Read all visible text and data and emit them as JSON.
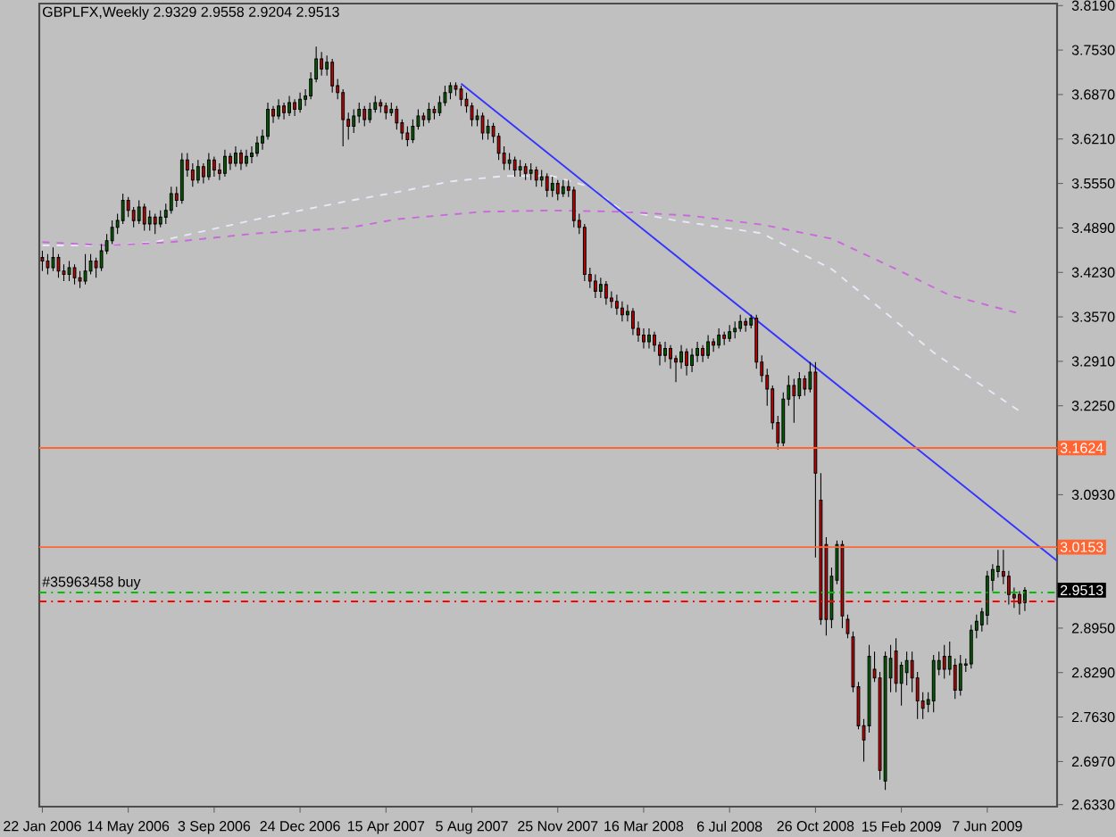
{
  "chart_data": {
    "type": "candlestick",
    "title": "GBPLFX,Weekly  2.9329 2.9558 2.9204 2.9513",
    "x": [
      "2006-01-22",
      "2006-01-29",
      "2006-02-05",
      "2006-02-12",
      "2006-02-19",
      "2006-02-26",
      "2006-03-05",
      "2006-03-12",
      "2006-03-19",
      "2006-03-26",
      "2006-04-02",
      "2006-04-09",
      "2006-04-16",
      "2006-04-23",
      "2006-04-30",
      "2006-05-07",
      "2006-05-14",
      "2006-05-21",
      "2006-05-28",
      "2006-06-04",
      "2006-06-11",
      "2006-06-18",
      "2006-06-25",
      "2006-07-02",
      "2006-07-09",
      "2006-07-16",
      "2006-07-23",
      "2006-07-30",
      "2006-08-06",
      "2006-08-13",
      "2006-08-20",
      "2006-08-27",
      "2006-09-03",
      "2006-09-10",
      "2006-09-17",
      "2006-09-24",
      "2006-10-01",
      "2006-10-08",
      "2006-10-15",
      "2006-10-22",
      "2006-10-29",
      "2006-11-05",
      "2006-11-12",
      "2006-11-19",
      "2006-11-26",
      "2006-12-03",
      "2006-12-10",
      "2006-12-17",
      "2006-12-24",
      "2006-12-31",
      "2007-01-07",
      "2007-01-14",
      "2007-01-21",
      "2007-01-28",
      "2007-02-04",
      "2007-02-11",
      "2007-02-18",
      "2007-02-25",
      "2007-03-04",
      "2007-03-11",
      "2007-03-18",
      "2007-03-25",
      "2007-04-01",
      "2007-04-08",
      "2007-04-15",
      "2007-04-22",
      "2007-04-29",
      "2007-05-06",
      "2007-05-13",
      "2007-05-20",
      "2007-05-27",
      "2007-06-03",
      "2007-06-10",
      "2007-06-17",
      "2007-06-24",
      "2007-07-01",
      "2007-07-08",
      "2007-07-15",
      "2007-07-22",
      "2007-07-29",
      "2007-08-05",
      "2007-08-12",
      "2007-08-19",
      "2007-08-26",
      "2007-09-02",
      "2007-09-09",
      "2007-09-16",
      "2007-09-23",
      "2007-09-30",
      "2007-10-07",
      "2007-10-14",
      "2007-10-21",
      "2007-10-28",
      "2007-11-04",
      "2007-11-11",
      "2007-11-18",
      "2007-11-25",
      "2007-12-02",
      "2007-12-09",
      "2007-12-16",
      "2007-12-23",
      "2007-12-30",
      "2008-01-06",
      "2008-01-13",
      "2008-01-20",
      "2008-01-27",
      "2008-02-03",
      "2008-02-10",
      "2008-02-17",
      "2008-02-24",
      "2008-03-02",
      "2008-03-09",
      "2008-03-16",
      "2008-03-23",
      "2008-03-30",
      "2008-04-06",
      "2008-04-13",
      "2008-04-20",
      "2008-04-27",
      "2008-05-04",
      "2008-05-11",
      "2008-05-18",
      "2008-05-25",
      "2008-06-01",
      "2008-06-08",
      "2008-06-15",
      "2008-06-22",
      "2008-06-29",
      "2008-07-06",
      "2008-07-13",
      "2008-07-20",
      "2008-07-27",
      "2008-08-03",
      "2008-08-10",
      "2008-08-17",
      "2008-08-24",
      "2008-08-31",
      "2008-09-07",
      "2008-09-14",
      "2008-09-21",
      "2008-09-28",
      "2008-10-05",
      "2008-10-12",
      "2008-10-19",
      "2008-10-26",
      "2008-11-02",
      "2008-11-09",
      "2008-11-16",
      "2008-11-23",
      "2008-11-30",
      "2008-12-07",
      "2008-12-14",
      "2008-12-21",
      "2008-12-28",
      "2009-01-04",
      "2009-01-11",
      "2009-01-18",
      "2009-01-25",
      "2009-02-01",
      "2009-02-08",
      "2009-02-15",
      "2009-02-22",
      "2009-03-01",
      "2009-03-08",
      "2009-03-15",
      "2009-03-22",
      "2009-03-29",
      "2009-04-05",
      "2009-04-12",
      "2009-04-19",
      "2009-04-26",
      "2009-05-03",
      "2009-05-10",
      "2009-05-17",
      "2009-05-24",
      "2009-05-31",
      "2009-06-07",
      "2009-06-14",
      "2009-06-21",
      "2009-06-28",
      "2009-07-05",
      "2009-07-12",
      "2009-07-19",
      "2009-07-26"
    ],
    "ohlc": [
      [
        3.445,
        3.455,
        3.425,
        3.44
      ],
      [
        3.44,
        3.45,
        3.42,
        3.43
      ],
      [
        3.43,
        3.46,
        3.425,
        3.445
      ],
      [
        3.445,
        3.45,
        3.415,
        3.425
      ],
      [
        3.425,
        3.435,
        3.41,
        3.42
      ],
      [
        3.42,
        3.44,
        3.41,
        3.43
      ],
      [
        3.43,
        3.435,
        3.405,
        3.415
      ],
      [
        3.415,
        3.425,
        3.4,
        3.41
      ],
      [
        3.41,
        3.45,
        3.405,
        3.425
      ],
      [
        3.425,
        3.45,
        3.42,
        3.44
      ],
      [
        3.44,
        3.445,
        3.415,
        3.43
      ],
      [
        3.43,
        3.465,
        3.425,
        3.455
      ],
      [
        3.455,
        3.48,
        3.45,
        3.47
      ],
      [
        3.47,
        3.5,
        3.465,
        3.49
      ],
      [
        3.49,
        3.51,
        3.48,
        3.5
      ],
      [
        3.5,
        3.54,
        3.495,
        3.53
      ],
      [
        3.53,
        3.535,
        3.505,
        3.515
      ],
      [
        3.515,
        3.52,
        3.49,
        3.5
      ],
      [
        3.5,
        3.53,
        3.495,
        3.52
      ],
      [
        3.52,
        3.525,
        3.485,
        3.495
      ],
      [
        3.495,
        3.515,
        3.485,
        3.505
      ],
      [
        3.505,
        3.51,
        3.48,
        3.495
      ],
      [
        3.495,
        3.515,
        3.49,
        3.505
      ],
      [
        3.505,
        3.525,
        3.495,
        3.515
      ],
      [
        3.515,
        3.55,
        3.51,
        3.54
      ],
      [
        3.54,
        3.55,
        3.52,
        3.53
      ],
      [
        3.53,
        3.6,
        3.525,
        3.59
      ],
      [
        3.59,
        3.6,
        3.565,
        3.575
      ],
      [
        3.575,
        3.585,
        3.55,
        3.56
      ],
      [
        3.56,
        3.59,
        3.555,
        3.58
      ],
      [
        3.58,
        3.585,
        3.555,
        3.565
      ],
      [
        3.565,
        3.6,
        3.56,
        3.59
      ],
      [
        3.59,
        3.595,
        3.565,
        3.575
      ],
      [
        3.575,
        3.585,
        3.56,
        3.57
      ],
      [
        3.57,
        3.605,
        3.565,
        3.595
      ],
      [
        3.595,
        3.6,
        3.575,
        3.585
      ],
      [
        3.585,
        3.61,
        3.58,
        3.6
      ],
      [
        3.6,
        3.605,
        3.575,
        3.585
      ],
      [
        3.585,
        3.605,
        3.58,
        3.595
      ],
      [
        3.595,
        3.61,
        3.585,
        3.6
      ],
      [
        3.6,
        3.625,
        3.595,
        3.615
      ],
      [
        3.615,
        3.635,
        3.605,
        3.625
      ],
      [
        3.625,
        3.675,
        3.62,
        3.665
      ],
      [
        3.665,
        3.67,
        3.645,
        3.655
      ],
      [
        3.655,
        3.68,
        3.65,
        3.67
      ],
      [
        3.67,
        3.675,
        3.65,
        3.66
      ],
      [
        3.66,
        3.685,
        3.655,
        3.675
      ],
      [
        3.675,
        3.68,
        3.655,
        3.665
      ],
      [
        3.665,
        3.69,
        3.66,
        3.68
      ],
      [
        3.68,
        3.695,
        3.67,
        3.685
      ],
      [
        3.685,
        3.72,
        3.68,
        3.71
      ],
      [
        3.71,
        3.758,
        3.705,
        3.74
      ],
      [
        3.74,
        3.75,
        3.715,
        3.725
      ],
      [
        3.725,
        3.745,
        3.715,
        3.735
      ],
      [
        3.735,
        3.74,
        3.69,
        3.7
      ],
      [
        3.7,
        3.71,
        3.68,
        3.69
      ],
      [
        3.69,
        3.695,
        3.61,
        3.65
      ],
      [
        3.65,
        3.66,
        3.62,
        3.64
      ],
      [
        3.64,
        3.665,
        3.63,
        3.655
      ],
      [
        3.655,
        3.675,
        3.645,
        3.665
      ],
      [
        3.665,
        3.67,
        3.64,
        3.65
      ],
      [
        3.65,
        3.675,
        3.645,
        3.665
      ],
      [
        3.665,
        3.685,
        3.66,
        3.675
      ],
      [
        3.675,
        3.68,
        3.66,
        3.67
      ],
      [
        3.67,
        3.675,
        3.65,
        3.66
      ],
      [
        3.66,
        3.675,
        3.655,
        3.665
      ],
      [
        3.665,
        3.67,
        3.635,
        3.645
      ],
      [
        3.645,
        3.65,
        3.62,
        3.63
      ],
      [
        3.63,
        3.64,
        3.61,
        3.62
      ],
      [
        3.62,
        3.65,
        3.615,
        3.64
      ],
      [
        3.64,
        3.665,
        3.635,
        3.655
      ],
      [
        3.655,
        3.66,
        3.64,
        3.65
      ],
      [
        3.65,
        3.675,
        3.645,
        3.665
      ],
      [
        3.665,
        3.67,
        3.65,
        3.66
      ],
      [
        3.66,
        3.685,
        3.655,
        3.675
      ],
      [
        3.675,
        3.7,
        3.67,
        3.69
      ],
      [
        3.69,
        3.705,
        3.68,
        3.7
      ],
      [
        3.7,
        3.705,
        3.685,
        3.695
      ],
      [
        3.695,
        3.7,
        3.67,
        3.68
      ],
      [
        3.68,
        3.69,
        3.66,
        3.67
      ],
      [
        3.67,
        3.675,
        3.64,
        3.65
      ],
      [
        3.65,
        3.665,
        3.64,
        3.655
      ],
      [
        3.655,
        3.66,
        3.62,
        3.63
      ],
      [
        3.63,
        3.65,
        3.62,
        3.64
      ],
      [
        3.64,
        3.645,
        3.615,
        3.625
      ],
      [
        3.625,
        3.63,
        3.59,
        3.6
      ],
      [
        3.6,
        3.61,
        3.575,
        3.585
      ],
      [
        3.585,
        3.6,
        3.575,
        3.59
      ],
      [
        3.59,
        3.595,
        3.565,
        3.575
      ],
      [
        3.575,
        3.59,
        3.565,
        3.58
      ],
      [
        3.58,
        3.585,
        3.56,
        3.57
      ],
      [
        3.57,
        3.585,
        3.56,
        3.575
      ],
      [
        3.575,
        3.58,
        3.55,
        3.56
      ],
      [
        3.56,
        3.575,
        3.55,
        3.565
      ],
      [
        3.565,
        3.57,
        3.535,
        3.545
      ],
      [
        3.545,
        3.565,
        3.535,
        3.555
      ],
      [
        3.555,
        3.56,
        3.53,
        3.54
      ],
      [
        3.54,
        3.56,
        3.535,
        3.55
      ],
      [
        3.55,
        3.56,
        3.535,
        3.545
      ],
      [
        3.545,
        3.55,
        3.49,
        3.5
      ],
      [
        3.5,
        3.51,
        3.48,
        3.49
      ],
      [
        3.49,
        3.495,
        3.41,
        3.42
      ],
      [
        3.42,
        3.43,
        3.4,
        3.41
      ],
      [
        3.41,
        3.42,
        3.385,
        3.395
      ],
      [
        3.395,
        3.415,
        3.385,
        3.405
      ],
      [
        3.405,
        3.41,
        3.375,
        3.385
      ],
      [
        3.385,
        3.395,
        3.37,
        3.38
      ],
      [
        3.38,
        3.39,
        3.36,
        3.37
      ],
      [
        3.37,
        3.38,
        3.35,
        3.36
      ],
      [
        3.36,
        3.375,
        3.35,
        3.365
      ],
      [
        3.365,
        3.37,
        3.33,
        3.34
      ],
      [
        3.34,
        3.35,
        3.32,
        3.33
      ],
      [
        3.33,
        3.34,
        3.31,
        3.32
      ],
      [
        3.32,
        3.34,
        3.31,
        3.33
      ],
      [
        3.33,
        3.335,
        3.305,
        3.315
      ],
      [
        3.315,
        3.32,
        3.285,
        3.3
      ],
      [
        3.3,
        3.32,
        3.29,
        3.31
      ],
      [
        3.31,
        3.315,
        3.28,
        3.295
      ],
      [
        3.295,
        3.3,
        3.26,
        3.29
      ],
      [
        3.29,
        3.315,
        3.28,
        3.305
      ],
      [
        3.305,
        3.31,
        3.27,
        3.285
      ],
      [
        3.285,
        3.31,
        3.275,
        3.3
      ],
      [
        3.3,
        3.32,
        3.29,
        3.31
      ],
      [
        3.31,
        3.315,
        3.29,
        3.3
      ],
      [
        3.3,
        3.33,
        3.295,
        3.32
      ],
      [
        3.32,
        3.325,
        3.305,
        3.315
      ],
      [
        3.315,
        3.34,
        3.31,
        3.33
      ],
      [
        3.33,
        3.335,
        3.315,
        3.325
      ],
      [
        3.325,
        3.345,
        3.32,
        3.335
      ],
      [
        3.335,
        3.35,
        3.325,
        3.34
      ],
      [
        3.34,
        3.36,
        3.335,
        3.35
      ],
      [
        3.35,
        3.355,
        3.335,
        3.345
      ],
      [
        3.345,
        3.36,
        3.34,
        3.355
      ],
      [
        3.355,
        3.36,
        3.28,
        3.29
      ],
      [
        3.29,
        3.3,
        3.26,
        3.27
      ],
      [
        3.27,
        3.28,
        3.225,
        3.25
      ],
      [
        3.25,
        3.255,
        3.19,
        3.2
      ],
      [
        3.2,
        3.21,
        3.16,
        3.17
      ],
      [
        3.17,
        3.245,
        3.165,
        3.235
      ],
      [
        3.235,
        3.27,
        3.225,
        3.255
      ],
      [
        3.255,
        3.265,
        3.2,
        3.24
      ],
      [
        3.24,
        3.275,
        3.235,
        3.265
      ],
      [
        3.265,
        3.27,
        3.24,
        3.25
      ],
      [
        3.25,
        3.29,
        3.245,
        3.275
      ],
      [
        3.275,
        3.29,
        3.0,
        3.125
      ],
      [
        3.085,
        3.125,
        2.9,
        2.908
      ],
      [
        3.019,
        3.03,
        2.884,
        2.908
      ],
      [
        2.908,
        2.985,
        2.895,
        2.972
      ],
      [
        2.966,
        3.025,
        2.96,
        3.019
      ],
      [
        3.019,
        3.025,
        2.895,
        2.913
      ],
      [
        2.908,
        2.915,
        2.88,
        2.887
      ],
      [
        2.882,
        2.89,
        2.8,
        2.808
      ],
      [
        2.808,
        2.815,
        2.745,
        2.75
      ],
      [
        2.75,
        2.76,
        2.697,
        2.729
      ],
      [
        2.75,
        2.87,
        2.74,
        2.853
      ],
      [
        2.834,
        2.86,
        2.815,
        2.821
      ],
      [
        2.821,
        2.83,
        2.67,
        2.684
      ],
      [
        2.668,
        2.86,
        2.655,
        2.853
      ],
      [
        2.821,
        2.87,
        2.8,
        2.85
      ],
      [
        2.861,
        2.88,
        2.8,
        2.813
      ],
      [
        2.813,
        2.845,
        2.78,
        2.84
      ],
      [
        2.829,
        2.86,
        2.81,
        2.847
      ],
      [
        2.847,
        2.86,
        2.8,
        2.821
      ],
      [
        2.821,
        2.83,
        2.76,
        2.787
      ],
      [
        2.787,
        2.8,
        2.76,
        2.776
      ],
      [
        2.782,
        2.8,
        2.77,
        2.789
      ],
      [
        2.787,
        2.855,
        2.77,
        2.847
      ],
      [
        2.834,
        2.86,
        2.825,
        2.847
      ],
      [
        2.853,
        2.87,
        2.82,
        2.834
      ],
      [
        2.834,
        2.875,
        2.825,
        2.853
      ],
      [
        2.84,
        2.85,
        2.79,
        2.803
      ],
      [
        2.803,
        2.855,
        2.795,
        2.842
      ],
      [
        2.84,
        2.85,
        2.83,
        2.842
      ],
      [
        2.842,
        2.9,
        2.835,
        2.892
      ],
      [
        2.892,
        2.915,
        2.88,
        2.905
      ],
      [
        2.9,
        2.925,
        2.89,
        2.919
      ],
      [
        2.914,
        2.98,
        2.9,
        2.972
      ],
      [
        2.966,
        2.99,
        2.95,
        2.982
      ],
      [
        2.979,
        3.011,
        2.97,
        2.987
      ],
      [
        2.979,
        3.011,
        2.96,
        2.972
      ],
      [
        2.972,
        2.98,
        2.93,
        2.945
      ],
      [
        2.945,
        2.955,
        2.925,
        2.94
      ],
      [
        2.945,
        2.95,
        2.915,
        2.932
      ],
      [
        2.9329,
        2.9558,
        2.9204,
        2.9513
      ]
    ],
    "series": [
      {
        "type": "line",
        "color": "#e8e8f8",
        "line_style": "dashed",
        "x": [
          "2006-01-22",
          "2006-04-16",
          "2006-06-18",
          "2006-08-27",
          "2006-10-29",
          "2007-01-07",
          "2007-02-25",
          "2007-04-29",
          "2007-07-08",
          "2007-09-16",
          "2007-11-18",
          "2008-01-06",
          "2008-02-17",
          "2008-04-27",
          "2008-08-17",
          "2008-11-16",
          "2009-01-18",
          "2009-03-29",
          "2009-07-19"
        ],
        "values": [
          3.463,
          3.463,
          3.468,
          3.486,
          3.502,
          3.518,
          3.529,
          3.542,
          3.558,
          3.566,
          3.566,
          3.55,
          3.515,
          3.5,
          3.481,
          3.428,
          3.37,
          3.304,
          3.217
        ]
      },
      {
        "type": "line",
        "color": "#cc66dd",
        "line_style": "dashed",
        "x": [
          "2006-01-22",
          "2006-04-16",
          "2006-07-09",
          "2006-10-29",
          "2007-02-25",
          "2007-04-29",
          "2007-08-19",
          "2007-11-18",
          "2008-02-17",
          "2008-05-18",
          "2008-08-17",
          "2008-11-16",
          "2009-02-08",
          "2009-04-19",
          "2009-07-19"
        ],
        "values": [
          3.468,
          3.463,
          3.468,
          3.481,
          3.489,
          3.502,
          3.513,
          3.515,
          3.513,
          3.507,
          3.494,
          3.473,
          3.428,
          3.389,
          3.362
        ]
      },
      {
        "type": "line",
        "color": "#3333ff",
        "line_style": "solid",
        "x": [
          "2007-07-22",
          "2009-09-06"
        ],
        "values": [
          3.703,
          2.995
        ]
      }
    ],
    "xlim": [
      "2006-01-18",
      "2009-09-06"
    ],
    "ylim": [
      2.63,
      3.822
    ],
    "xticks": [
      {
        "value": "2006-01-22",
        "label": "22 Jan 2006"
      },
      {
        "value": "2006-05-14",
        "label": "14 May 2006"
      },
      {
        "value": "2006-09-03",
        "label": "3 Sep 2006"
      },
      {
        "value": "2006-12-24",
        "label": "24 Dec 2006"
      },
      {
        "value": "2007-04-15",
        "label": "15 Apr 2007"
      },
      {
        "value": "2007-08-05",
        "label": "5 Aug 2007"
      },
      {
        "value": "2007-11-25",
        "label": "25 Nov 2007"
      },
      {
        "value": "2008-03-16",
        "label": "16 Mar 2008"
      },
      {
        "value": "2008-07-06",
        "label": "6 Jul 2008"
      },
      {
        "value": "2008-10-26",
        "label": "26 Oct 2008"
      },
      {
        "value": "2009-02-15",
        "label": "15 Feb 2009"
      },
      {
        "value": "2009-06-07",
        "label": "7 Jun 2009"
      }
    ],
    "yticks": [
      {
        "value": 3.819,
        "label": "3.8190"
      },
      {
        "value": 3.753,
        "label": "3.7530"
      },
      {
        "value": 3.687,
        "label": "3.6870"
      },
      {
        "value": 3.621,
        "label": "3.6210"
      },
      {
        "value": 3.555,
        "label": "3.5550"
      },
      {
        "value": 3.489,
        "label": "3.4890"
      },
      {
        "value": 3.423,
        "label": "3.4230"
      },
      {
        "value": 3.357,
        "label": "3.3570"
      },
      {
        "value": 3.291,
        "label": "3.2910"
      },
      {
        "value": 3.225,
        "label": "3.2250"
      },
      {
        "value": 3.093,
        "label": "3.0930"
      },
      {
        "value": 2.895,
        "label": "2.8950"
      },
      {
        "value": 2.829,
        "label": "2.8290"
      },
      {
        "value": 2.763,
        "label": "2.7630"
      },
      {
        "value": 2.697,
        "label": "2.6970"
      },
      {
        "value": 2.633,
        "label": "2.6330"
      }
    ],
    "ref_lines": [
      {
        "axis": "y",
        "value": 3.1624,
        "label": "3.1624",
        "color": "#ff6633",
        "line_style": "solid"
      },
      {
        "axis": "y",
        "value": 3.0153,
        "label": "3.0153",
        "color": "#ff6633",
        "line_style": "solid"
      },
      {
        "axis": "y",
        "value": 2.9478,
        "label": "#35963458 buy",
        "color": "#00c000",
        "line_style": "dashdot"
      },
      {
        "axis": "y",
        "value": 2.9346,
        "color": "#ff0000",
        "line_style": "dashdot"
      }
    ],
    "annotations": [
      {
        "text": "2.9513",
        "y": 2.9513
      }
    ]
  }
}
